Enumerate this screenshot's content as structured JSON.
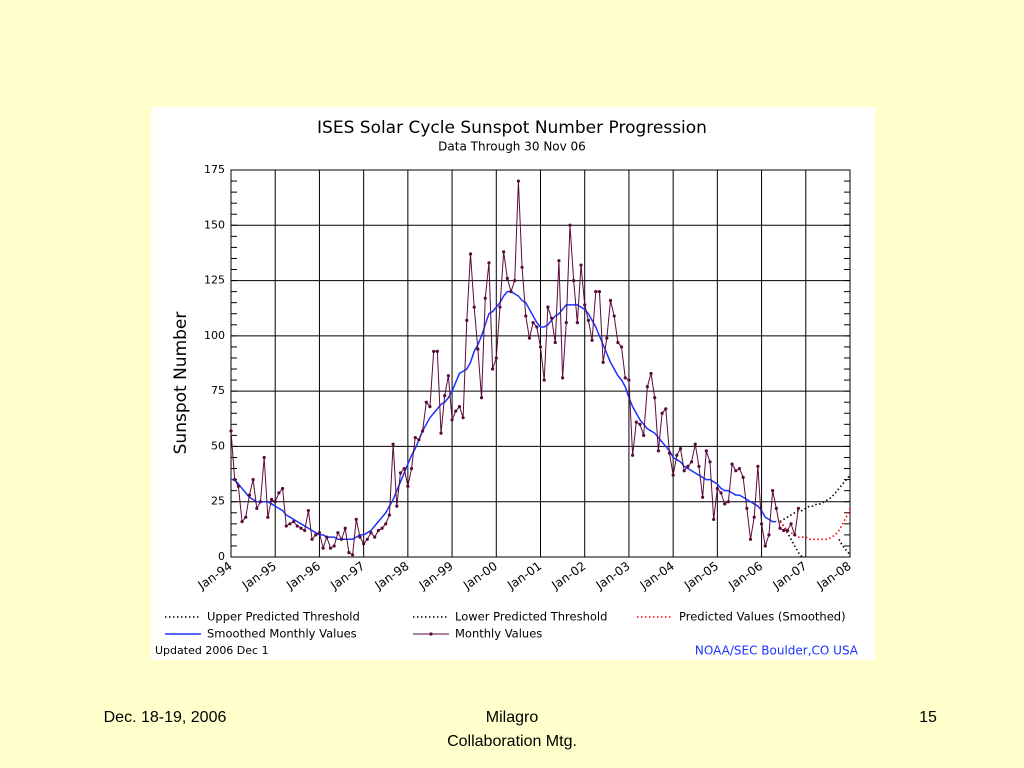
{
  "chart_data": {
    "type": "line",
    "title": "ISES Solar Cycle Sunspot Number Progression",
    "subtitle": "Data Through 30 Nov 06",
    "ylabel": "Sunspot Number",
    "ylim": [
      0,
      175
    ],
    "yticks": [
      0,
      25,
      50,
      75,
      100,
      125,
      150,
      175
    ],
    "grid": true,
    "xlim": [
      "1994-01",
      "2008-01"
    ],
    "xticks": [
      {
        "value": "1994-01",
        "label": "Jan-94"
      },
      {
        "value": "1995-01",
        "label": "Jan-95"
      },
      {
        "value": "1996-01",
        "label": "Jan-96"
      },
      {
        "value": "1997-01",
        "label": "Jan-97"
      },
      {
        "value": "1998-01",
        "label": "Jan-98"
      },
      {
        "value": "1999-01",
        "label": "Jan-99"
      },
      {
        "value": "2000-01",
        "label": "Jan-00"
      },
      {
        "value": "2001-01",
        "label": "Jan-01"
      },
      {
        "value": "2002-01",
        "label": "Jan-02"
      },
      {
        "value": "2003-01",
        "label": "Jan-03"
      },
      {
        "value": "2004-01",
        "label": "Jan-04"
      },
      {
        "value": "2005-01",
        "label": "Jan-05"
      },
      {
        "value": "2006-01",
        "label": "Jan-06"
      },
      {
        "value": "2007-01",
        "label": "Jan-07"
      },
      {
        "value": "2008-01",
        "label": "Jan-08"
      }
    ],
    "series": [
      {
        "name": "Upper Predicted Threshold",
        "color": "#000000",
        "style": "dotted",
        "x": [
          "2006-06",
          "2006-07",
          "2006-08",
          "2006-09",
          "2006-10",
          "2006-11",
          "2006-12",
          "2007-01",
          "2007-02",
          "2007-03",
          "2007-04",
          "2007-05",
          "2007-06",
          "2007-07",
          "2007-08",
          "2007-09",
          "2007-10",
          "2007-11",
          "2007-12",
          "2008-01"
        ],
        "values": [
          16,
          17,
          18,
          19,
          20,
          21,
          21,
          22,
          23,
          23,
          24,
          24,
          25,
          26,
          27,
          29,
          31,
          33,
          35,
          37
        ]
      },
      {
        "name": "Lower Predicted Threshold",
        "color": "#000000",
        "style": "dotted",
        "x": [
          "2006-06",
          "2006-07",
          "2006-08",
          "2006-09",
          "2006-10",
          "2006-11",
          "2006-12",
          "2007-01",
          "2007-02",
          "2007-03",
          "2007-04",
          "2007-05",
          "2007-06",
          "2007-07",
          "2007-08",
          "2007-09",
          "2007-10",
          "2007-11",
          "2007-12",
          "2008-01"
        ],
        "values": [
          16,
          14,
          11,
          8,
          5,
          2,
          0,
          null,
          null,
          null,
          null,
          null,
          null,
          null,
          null,
          null,
          8,
          5,
          3,
          1
        ]
      },
      {
        "name": "Predicted Values (Smoothed)",
        "color": "#ff0000",
        "style": "dotted",
        "x": [
          "2006-06",
          "2006-07",
          "2006-08",
          "2006-09",
          "2006-10",
          "2006-11",
          "2006-12",
          "2007-01",
          "2007-02",
          "2007-03",
          "2007-04",
          "2007-05",
          "2007-06",
          "2007-07",
          "2007-08",
          "2007-09",
          "2007-10",
          "2007-11",
          "2007-12",
          "2008-01"
        ],
        "values": [
          16,
          14,
          12,
          11,
          10,
          9,
          9,
          9,
          8,
          8,
          8,
          8,
          8,
          8,
          9,
          10,
          12,
          15,
          18,
          22
        ]
      },
      {
        "name": "Smoothed Monthly Values",
        "color": "#1a33ff",
        "style": "solid",
        "x": [
          "1994-01",
          "1994-02",
          "1994-03",
          "1994-04",
          "1994-05",
          "1994-06",
          "1994-07",
          "1994-08",
          "1994-09",
          "1994-10",
          "1994-11",
          "1994-12",
          "1995-01",
          "1995-02",
          "1995-03",
          "1995-04",
          "1995-05",
          "1995-06",
          "1995-07",
          "1995-08",
          "1995-09",
          "1995-10",
          "1995-11",
          "1995-12",
          "1996-01",
          "1996-02",
          "1996-03",
          "1996-04",
          "1996-05",
          "1996-06",
          "1996-07",
          "1996-08",
          "1996-09",
          "1996-10",
          "1996-11",
          "1996-12",
          "1997-01",
          "1997-02",
          "1997-03",
          "1997-04",
          "1997-05",
          "1997-06",
          "1997-07",
          "1997-08",
          "1997-09",
          "1997-10",
          "1997-11",
          "1997-12",
          "1998-01",
          "1998-02",
          "1998-03",
          "1998-04",
          "1998-05",
          "1998-06",
          "1998-07",
          "1998-08",
          "1998-09",
          "1998-10",
          "1998-11",
          "1998-12",
          "1999-01",
          "1999-02",
          "1999-03",
          "1999-04",
          "1999-05",
          "1999-06",
          "1999-07",
          "1999-08",
          "1999-09",
          "1999-10",
          "1999-11",
          "1999-12",
          "2000-01",
          "2000-02",
          "2000-03",
          "2000-04",
          "2000-05",
          "2000-06",
          "2000-07",
          "2000-08",
          "2000-09",
          "2000-10",
          "2000-11",
          "2000-12",
          "2001-01",
          "2001-02",
          "2001-03",
          "2001-04",
          "2001-05",
          "2001-06",
          "2001-07",
          "2001-08",
          "2001-09",
          "2001-10",
          "2001-11",
          "2001-12",
          "2002-01",
          "2002-02",
          "2002-03",
          "2002-04",
          "2002-05",
          "2002-06",
          "2002-07",
          "2002-08",
          "2002-09",
          "2002-10",
          "2002-11",
          "2002-12",
          "2003-01",
          "2003-02",
          "2003-03",
          "2003-04",
          "2003-05",
          "2003-06",
          "2003-07",
          "2003-08",
          "2003-09",
          "2003-10",
          "2003-11",
          "2003-12",
          "2004-01",
          "2004-02",
          "2004-03",
          "2004-04",
          "2004-05",
          "2004-06",
          "2004-07",
          "2004-08",
          "2004-09",
          "2004-10",
          "2004-11",
          "2004-12",
          "2005-01",
          "2005-02",
          "2005-03",
          "2005-04",
          "2005-05",
          "2005-06",
          "2005-07",
          "2005-08",
          "2005-09",
          "2005-10",
          "2005-11",
          "2005-12",
          "2006-01",
          "2006-02",
          "2006-03",
          "2006-04",
          "2006-05"
        ],
        "values": [
          35,
          35,
          33,
          31,
          29,
          27,
          26,
          25,
          25,
          25,
          25,
          24,
          23,
          22,
          21,
          19,
          18,
          17,
          16,
          15,
          14,
          13,
          12,
          11,
          10,
          10,
          9,
          9,
          9,
          8,
          8,
          8,
          8,
          8,
          9,
          10,
          10,
          11,
          12,
          14,
          16,
          18,
          20,
          23,
          26,
          30,
          34,
          38,
          42,
          46,
          49,
          53,
          57,
          60,
          63,
          65,
          67,
          69,
          70,
          72,
          75,
          79,
          83,
          84,
          85,
          88,
          93,
          96,
          100,
          105,
          110,
          111,
          113,
          115,
          118,
          120,
          120,
          119,
          118,
          116,
          115,
          112,
          109,
          106,
          104,
          104,
          105,
          107,
          109,
          110,
          112,
          114,
          114,
          114,
          114,
          113,
          112,
          110,
          107,
          104,
          100,
          96,
          92,
          88,
          85,
          82,
          80,
          77,
          72,
          68,
          65,
          62,
          60,
          58,
          57,
          56,
          54,
          52,
          50,
          48,
          45,
          44,
          43,
          41,
          40,
          39,
          38,
          37,
          36,
          35,
          35,
          34,
          33,
          31,
          30,
          30,
          29,
          28,
          28,
          27,
          26,
          25,
          24,
          23,
          21,
          18,
          17,
          16,
          16
        ]
      },
      {
        "name": "Monthly Values",
        "color": "#5a0a3a",
        "style": "marker",
        "x": [
          "1994-01",
          "1994-02",
          "1994-03",
          "1994-04",
          "1994-05",
          "1994-06",
          "1994-07",
          "1994-08",
          "1994-09",
          "1994-10",
          "1994-11",
          "1994-12",
          "1995-01",
          "1995-02",
          "1995-03",
          "1995-04",
          "1995-05",
          "1995-06",
          "1995-07",
          "1995-08",
          "1995-09",
          "1995-10",
          "1995-11",
          "1995-12",
          "1996-01",
          "1996-02",
          "1996-03",
          "1996-04",
          "1996-05",
          "1996-06",
          "1996-07",
          "1996-08",
          "1996-09",
          "1996-10",
          "1996-11",
          "1996-12",
          "1997-01",
          "1997-02",
          "1997-03",
          "1997-04",
          "1997-05",
          "1997-06",
          "1997-07",
          "1997-08",
          "1997-09",
          "1997-10",
          "1997-11",
          "1997-12",
          "1998-01",
          "1998-02",
          "1998-03",
          "1998-04",
          "1998-05",
          "1998-06",
          "1998-07",
          "1998-08",
          "1998-09",
          "1998-10",
          "1998-11",
          "1998-12",
          "1999-01",
          "1999-02",
          "1999-03",
          "1999-04",
          "1999-05",
          "1999-06",
          "1999-07",
          "1999-08",
          "1999-09",
          "1999-10",
          "1999-11",
          "1999-12",
          "2000-01",
          "2000-02",
          "2000-03",
          "2000-04",
          "2000-05",
          "2000-06",
          "2000-07",
          "2000-08",
          "2000-09",
          "2000-10",
          "2000-11",
          "2000-12",
          "2001-01",
          "2001-02",
          "2001-03",
          "2001-04",
          "2001-05",
          "2001-06",
          "2001-07",
          "2001-08",
          "2001-09",
          "2001-10",
          "2001-11",
          "2001-12",
          "2002-01",
          "2002-02",
          "2002-03",
          "2002-04",
          "2002-05",
          "2002-06",
          "2002-07",
          "2002-08",
          "2002-09",
          "2002-10",
          "2002-11",
          "2002-12",
          "2003-01",
          "2003-02",
          "2003-03",
          "2003-04",
          "2003-05",
          "2003-06",
          "2003-07",
          "2003-08",
          "2003-09",
          "2003-10",
          "2003-11",
          "2003-12",
          "2004-01",
          "2004-02",
          "2004-03",
          "2004-04",
          "2004-05",
          "2004-06",
          "2004-07",
          "2004-08",
          "2004-09",
          "2004-10",
          "2004-11",
          "2004-12",
          "2005-01",
          "2005-02",
          "2005-03",
          "2005-04",
          "2005-05",
          "2005-06",
          "2005-07",
          "2005-08",
          "2005-09",
          "2005-10",
          "2005-11",
          "2005-12",
          "2006-01",
          "2006-02",
          "2006-03",
          "2006-04",
          "2006-05",
          "2006-06",
          "2006-07",
          "2006-08",
          "2006-09",
          "2006-10",
          "2006-11"
        ],
        "values": [
          57,
          35,
          32,
          16,
          18,
          28,
          35,
          22,
          25,
          45,
          18,
          26,
          25,
          29,
          31,
          14,
          15,
          16,
          14,
          13,
          12,
          21,
          8,
          10,
          11,
          4,
          9,
          4,
          5,
          11,
          8,
          13,
          2,
          1,
          17,
          9,
          6,
          8,
          11,
          9,
          12,
          13,
          15,
          19,
          51,
          23,
          38,
          40,
          32,
          40,
          54,
          53,
          57,
          70,
          68,
          93,
          93,
          56,
          73,
          82,
          62,
          66,
          68,
          63,
          107,
          137,
          113,
          94,
          72,
          117,
          133,
          85,
          90,
          113,
          138,
          126,
          120,
          125,
          170,
          131,
          109,
          99,
          106,
          104,
          95,
          80,
          113,
          108,
          97,
          134,
          81,
          106,
          150,
          125,
          106,
          132,
          114,
          107,
          98,
          120,
          120,
          88,
          99,
          116,
          109,
          97,
          95,
          81,
          80,
          46,
          61,
          60,
          55,
          77,
          83,
          72,
          48,
          65,
          67,
          47,
          37,
          46,
          49,
          39,
          41,
          43,
          51,
          41,
          27,
          48,
          43,
          17,
          31,
          29,
          24,
          25,
          42,
          39,
          40,
          36,
          22,
          8,
          18,
          41,
          15,
          5,
          10,
          30,
          22,
          13,
          12,
          12,
          15,
          10,
          22
        ]
      }
    ],
    "updated": "Updated 2006 Dec  1",
    "credit": "NOAA/SEC Boulder,CO USA"
  },
  "footer": {
    "date": "Dec. 18-19, 2006",
    "event": "Milagro",
    "event2": "Collaboration Mtg.",
    "page": "15"
  }
}
